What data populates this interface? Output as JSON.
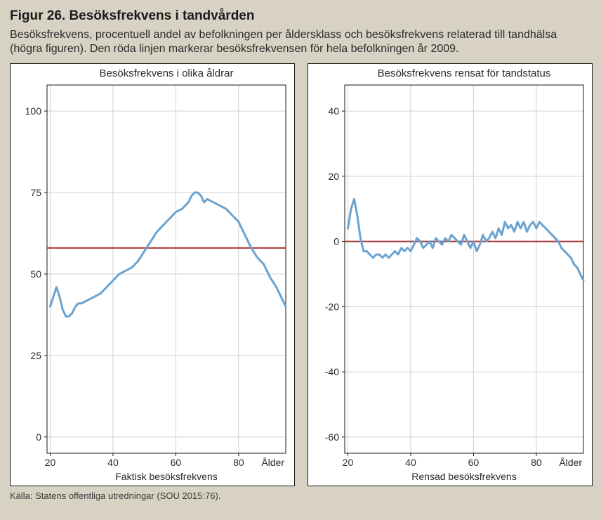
{
  "figure_title": "Figur 26. Besöksfrekvens i tandvården",
  "figure_caption": "Besöksfrekvens, procentuell andel av befolkningen per åldersklass och besöksfrekvens relaterad till tandhälsa (högra figuren). Den röda linjen markerar besöksfrekvensen för hela befolkningen år 2009.",
  "source": "Källa: Statens offentliga utredningar (SOU 2015:76).",
  "background_color": "#d8d2c5",
  "panel_bg": "#ffffff",
  "panel_border": "#1a1a1a",
  "grid_color": "#d0d0d0",
  "line_color": "#6aa3d0",
  "line_width": 3,
  "ref_line_color": "#a43a3a",
  "ref_line_width": 2,
  "left": {
    "type": "line",
    "title": "Besöksfrekvens i olika åldrar",
    "xlabel": "Faktisk besöksfrekvens",
    "xlim": [
      19,
      95
    ],
    "ylim": [
      -5,
      108
    ],
    "xticks": [
      20,
      40,
      60,
      80
    ],
    "yticks": [
      0,
      25,
      50,
      75,
      100
    ],
    "x_end_label": "Ålder",
    "ref_y": 58,
    "series_x": [
      20,
      21,
      22,
      23,
      24,
      25,
      26,
      27,
      28,
      29,
      30,
      32,
      34,
      36,
      38,
      40,
      42,
      44,
      46,
      48,
      50,
      52,
      54,
      56,
      58,
      60,
      62,
      64,
      65,
      66,
      67,
      68,
      69,
      70,
      72,
      74,
      76,
      78,
      80,
      82,
      84,
      86,
      88,
      90,
      92,
      94,
      95
    ],
    "series_y": [
      40,
      43,
      46,
      43,
      39,
      37,
      37,
      38,
      40,
      41,
      41,
      42,
      43,
      44,
      46,
      48,
      50,
      51,
      52,
      54,
      57,
      60,
      63,
      65,
      67,
      69,
      70,
      72,
      74,
      75,
      75,
      74,
      72,
      73,
      72,
      71,
      70,
      68,
      66,
      62,
      58,
      55,
      53,
      49,
      46,
      42,
      40
    ]
  },
  "right": {
    "type": "line",
    "title": "Besöksfrekvens rensat för tandstatus",
    "xlabel": "Rensad besöksfrekvens",
    "xlim": [
      19,
      95
    ],
    "ylim": [
      -65,
      48
    ],
    "xticks": [
      20,
      40,
      60,
      80
    ],
    "yticks": [
      -60,
      -40,
      -20,
      0,
      20,
      40
    ],
    "x_end_label": "Ålder",
    "ref_y": 0,
    "series_x": [
      20,
      21,
      22,
      23,
      24,
      25,
      26,
      27,
      28,
      29,
      30,
      31,
      32,
      33,
      34,
      35,
      36,
      37,
      38,
      39,
      40,
      41,
      42,
      43,
      44,
      45,
      46,
      47,
      48,
      49,
      50,
      51,
      52,
      53,
      54,
      55,
      56,
      57,
      58,
      59,
      60,
      61,
      62,
      63,
      64,
      65,
      66,
      67,
      68,
      69,
      70,
      71,
      72,
      73,
      74,
      75,
      76,
      77,
      78,
      79,
      80,
      81,
      82,
      83,
      84,
      85,
      86,
      87,
      88,
      89,
      90,
      91,
      92,
      93,
      94,
      95
    ],
    "series_y": [
      4,
      10,
      13,
      8,
      1,
      -3,
      -3,
      -4,
      -5,
      -4,
      -4,
      -5,
      -4,
      -5,
      -4,
      -3,
      -4,
      -2,
      -3,
      -2,
      -3,
      -1,
      1,
      0,
      -2,
      -1,
      0,
      -2,
      1,
      0,
      -1,
      1,
      0,
      2,
      1,
      0,
      -1,
      2,
      0,
      -2,
      0,
      -3,
      -1,
      2,
      0,
      1,
      3,
      1,
      4,
      2,
      6,
      4,
      5,
      3,
      6,
      4,
      6,
      3,
      5,
      6,
      4,
      6,
      5,
      4,
      3,
      2,
      1,
      0,
      -2,
      -3,
      -4,
      -5,
      -7,
      -8,
      -10,
      -12
    ]
  }
}
